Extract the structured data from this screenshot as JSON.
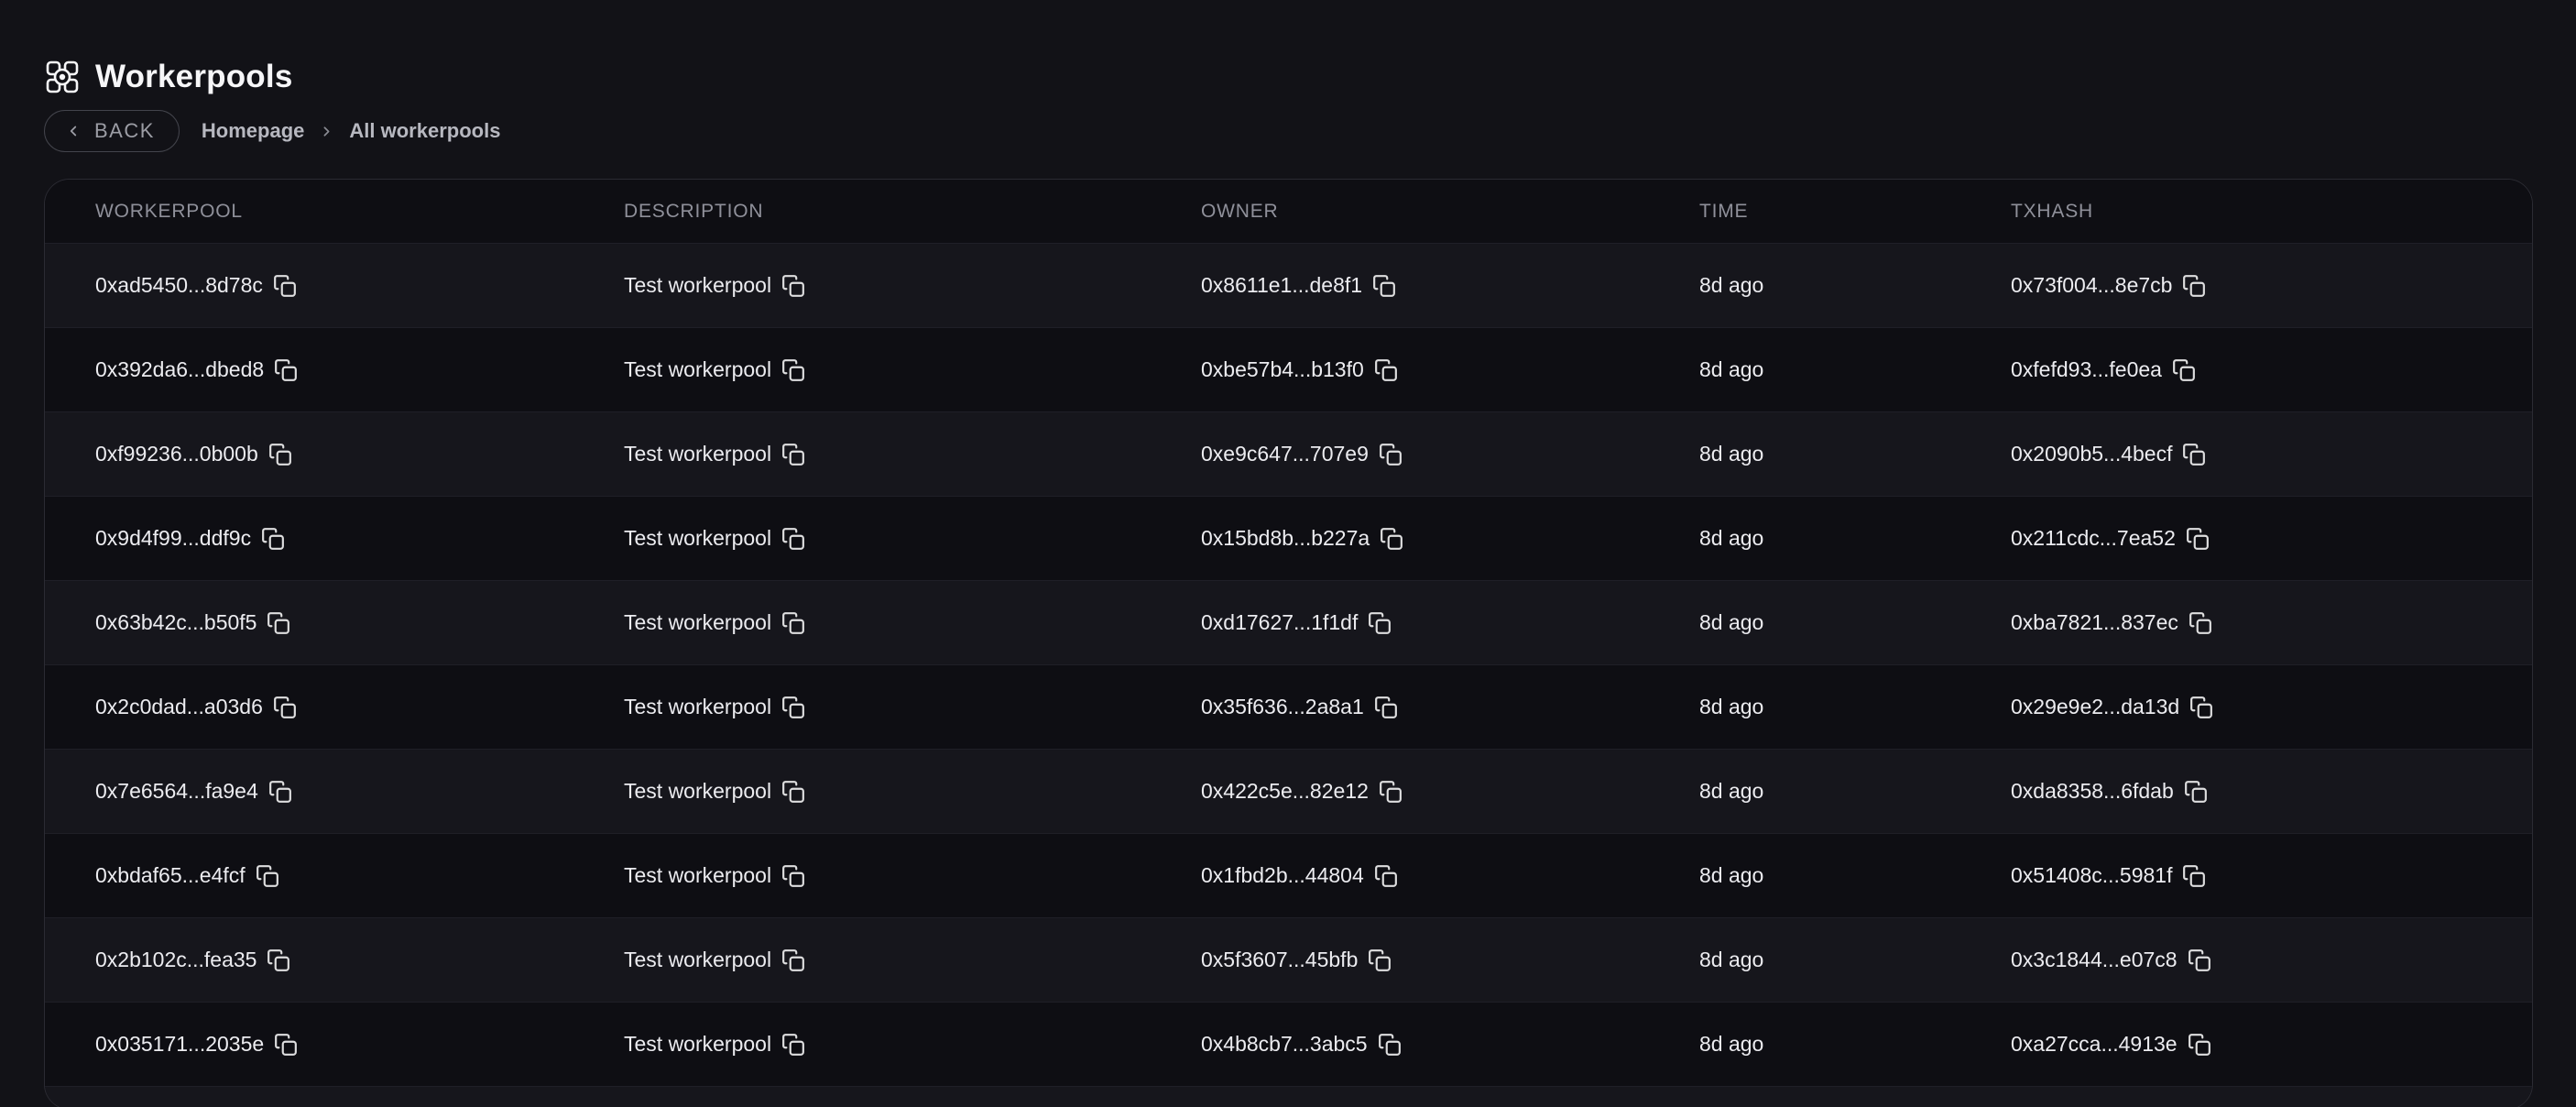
{
  "page": {
    "title": "Workerpools",
    "title_icon": "workerpool-grid-icon",
    "back_label": "BACK",
    "breadcrumb": {
      "items": [
        "Homepage",
        "All workerpools"
      ],
      "separator_icon": "chevron-right-icon"
    }
  },
  "table": {
    "columns": [
      "WORKERPOOL",
      "DESCRIPTION",
      "OWNER",
      "TIME",
      "TXHASH"
    ],
    "copy_icon": "copy-icon",
    "rows": [
      {
        "workerpool": "0xad5450...8d78c",
        "description": "Test workerpool",
        "owner": "0x8611e1...de8f1",
        "time": "8d ago",
        "txhash": "0x73f004...8e7cb"
      },
      {
        "workerpool": "0x392da6...dbed8",
        "description": "Test workerpool",
        "owner": "0xbe57b4...b13f0",
        "time": "8d ago",
        "txhash": "0xfefd93...fe0ea"
      },
      {
        "workerpool": "0xf99236...0b00b",
        "description": "Test workerpool",
        "owner": "0xe9c647...707e9",
        "time": "8d ago",
        "txhash": "0x2090b5...4becf"
      },
      {
        "workerpool": "0x9d4f99...ddf9c",
        "description": "Test workerpool",
        "owner": "0x15bd8b...b227a",
        "time": "8d ago",
        "txhash": "0x211cdc...7ea52"
      },
      {
        "workerpool": "0x63b42c...b50f5",
        "description": "Test workerpool",
        "owner": "0xd17627...1f1df",
        "time": "8d ago",
        "txhash": "0xba7821...837ec"
      },
      {
        "workerpool": "0x2c0dad...a03d6",
        "description": "Test workerpool",
        "owner": "0x35f636...2a8a1",
        "time": "8d ago",
        "txhash": "0x29e9e2...da13d"
      },
      {
        "workerpool": "0x7e6564...fa9e4",
        "description": "Test workerpool",
        "owner": "0x422c5e...82e12",
        "time": "8d ago",
        "txhash": "0xda8358...6fdab"
      },
      {
        "workerpool": "0xbdaf65...e4fcf",
        "description": "Test workerpool",
        "owner": "0x1fbd2b...44804",
        "time": "8d ago",
        "txhash": "0x51408c...5981f"
      },
      {
        "workerpool": "0x2b102c...fea35",
        "description": "Test workerpool",
        "owner": "0x5f3607...45bfb",
        "time": "8d ago",
        "txhash": "0x3c1844...e07c8"
      },
      {
        "workerpool": "0x035171...2035e",
        "description": "Test workerpool",
        "owner": "0x4b8cb7...3abc5",
        "time": "8d ago",
        "txhash": "0xa27cca...4913e"
      }
    ],
    "partial_row_visible": true
  },
  "colors": {
    "page_background": "#121217",
    "row_dark": "#0e0e13",
    "row_light": "#16161c",
    "card_border": "#2b2b33",
    "row_divider": "#1f1f27",
    "header_text": "#8f909a",
    "cell_text": "#ececf0",
    "muted_text": "#9c9da5",
    "title_text": "#f6f6f8"
  }
}
